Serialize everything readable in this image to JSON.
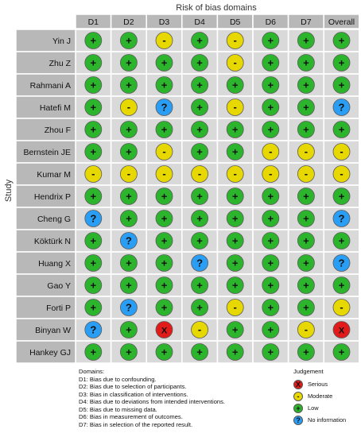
{
  "chart_data": {
    "type": "table",
    "title": "Risk of bias domains",
    "ylabel": "Study",
    "header_label": "Study",
    "columns": [
      "D1",
      "D2",
      "D3",
      "D4",
      "D5",
      "D6",
      "D7",
      "Overall"
    ],
    "rows": [
      {
        "study": "Yin J",
        "values": [
          "low",
          "low",
          "moderate",
          "low",
          "moderate",
          "low",
          "low",
          "low"
        ]
      },
      {
        "study": "Zhu Z",
        "values": [
          "low",
          "low",
          "low",
          "low",
          "moderate",
          "low",
          "low",
          "low"
        ]
      },
      {
        "study": "Rahmani A",
        "values": [
          "low",
          "low",
          "low",
          "low",
          "low",
          "low",
          "low",
          "low"
        ]
      },
      {
        "study": "Hatefi M",
        "values": [
          "low",
          "moderate",
          "no_information",
          "low",
          "moderate",
          "low",
          "low",
          "no_information"
        ]
      },
      {
        "study": "Zhou F",
        "values": [
          "low",
          "low",
          "low",
          "low",
          "low",
          "low",
          "low",
          "low"
        ]
      },
      {
        "study": "Bernstein JE",
        "values": [
          "low",
          "low",
          "moderate",
          "low",
          "low",
          "moderate",
          "moderate",
          "moderate"
        ]
      },
      {
        "study": "Kumar M",
        "values": [
          "moderate",
          "moderate",
          "moderate",
          "moderate",
          "moderate",
          "moderate",
          "moderate",
          "moderate"
        ]
      },
      {
        "study": "Hendrix P",
        "values": [
          "low",
          "low",
          "low",
          "low",
          "low",
          "low",
          "low",
          "low"
        ]
      },
      {
        "study": "Cheng G",
        "values": [
          "no_information",
          "low",
          "low",
          "low",
          "low",
          "low",
          "low",
          "no_information"
        ]
      },
      {
        "study": "Köktürk N",
        "values": [
          "low",
          "no_information",
          "low",
          "low",
          "low",
          "low",
          "low",
          "low"
        ]
      },
      {
        "study": "Huang X",
        "values": [
          "low",
          "low",
          "low",
          "no_information",
          "low",
          "low",
          "low",
          "no_information"
        ]
      },
      {
        "study": "Gao Y",
        "values": [
          "low",
          "low",
          "low",
          "low",
          "low",
          "low",
          "low",
          "low"
        ]
      },
      {
        "study": "Forti P",
        "values": [
          "low",
          "no_information",
          "low",
          "low",
          "moderate",
          "low",
          "low",
          "moderate"
        ]
      },
      {
        "study": "Binyan W",
        "values": [
          "no_information",
          "low",
          "serious",
          "moderate",
          "low",
          "low",
          "moderate",
          "serious"
        ]
      },
      {
        "study": "Hankey GJ",
        "values": [
          "low",
          "low",
          "low",
          "low",
          "low",
          "low",
          "low",
          "low"
        ]
      }
    ],
    "symbols": {
      "low": "+",
      "moderate": "-",
      "serious": "X",
      "no_information": "?"
    },
    "colors": {
      "low": "#2cb42c",
      "moderate": "#e6d800",
      "serious": "#e11a1a",
      "no_information": "#2a9df4",
      "header_fill": "#b8b8b8",
      "grid_fill": "#d9d9d9",
      "grid_line": "#ffffff"
    }
  },
  "domains_legend": {
    "title": "Domains:",
    "items": [
      "D1: Bias due to confounding.",
      "D2: Bias due to selection of participants.",
      "D3: Bias in classification of interventions.",
      "D4: Bias due to deviations from intended interventions.",
      "D5: Bias due to missing data.",
      "D6: Bias in measurement of outcomes.",
      "D7: Bias in selection of the reported result."
    ]
  },
  "judgement_legend": {
    "title": "Judgement",
    "items": [
      {
        "key": "serious",
        "label": "Serious"
      },
      {
        "key": "moderate",
        "label": "Moderate"
      },
      {
        "key": "low",
        "label": "Low"
      },
      {
        "key": "no_information",
        "label": "No information"
      }
    ]
  }
}
